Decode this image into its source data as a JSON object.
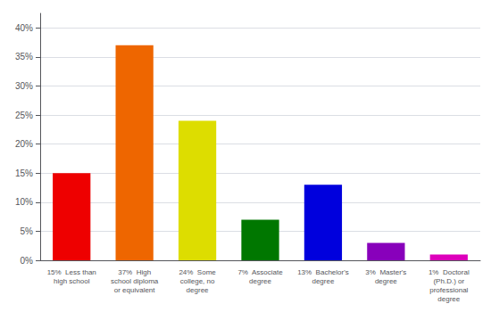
{
  "chart_data": {
    "type": "bar",
    "categories": [
      "15%  Less than\nhigh school",
      "37%  High\nschool diploma\nor equivalent",
      "24%  Some\ncollege, no\ndegree",
      "7%  Associate\ndegree",
      "13%  Bachelor's\ndegree",
      "3%  Master's\ndegree",
      "1%  Doctoral\n(Ph.D.) or\nprofessional\ndegree"
    ],
    "values": [
      15,
      37,
      24,
      7,
      13,
      3,
      1
    ],
    "colors": [
      "#ee0000",
      "#ee6600",
      "#dddd00",
      "#007700",
      "#0000dd",
      "#8800bb",
      "#dd00bb"
    ],
    "ylim": [
      0,
      42.5
    ],
    "yticks": [
      {
        "value": 0,
        "label": "0%"
      },
      {
        "value": 5,
        "label": "5%"
      },
      {
        "value": 10,
        "label": "10%"
      },
      {
        "value": 15,
        "label": "15%"
      },
      {
        "value": 20,
        "label": "20%"
      },
      {
        "value": 25,
        "label": "25%"
      },
      {
        "value": 30,
        "label": "30%"
      },
      {
        "value": 35,
        "label": "35%"
      },
      {
        "value": 40,
        "label": "40%"
      }
    ],
    "grid": true
  }
}
